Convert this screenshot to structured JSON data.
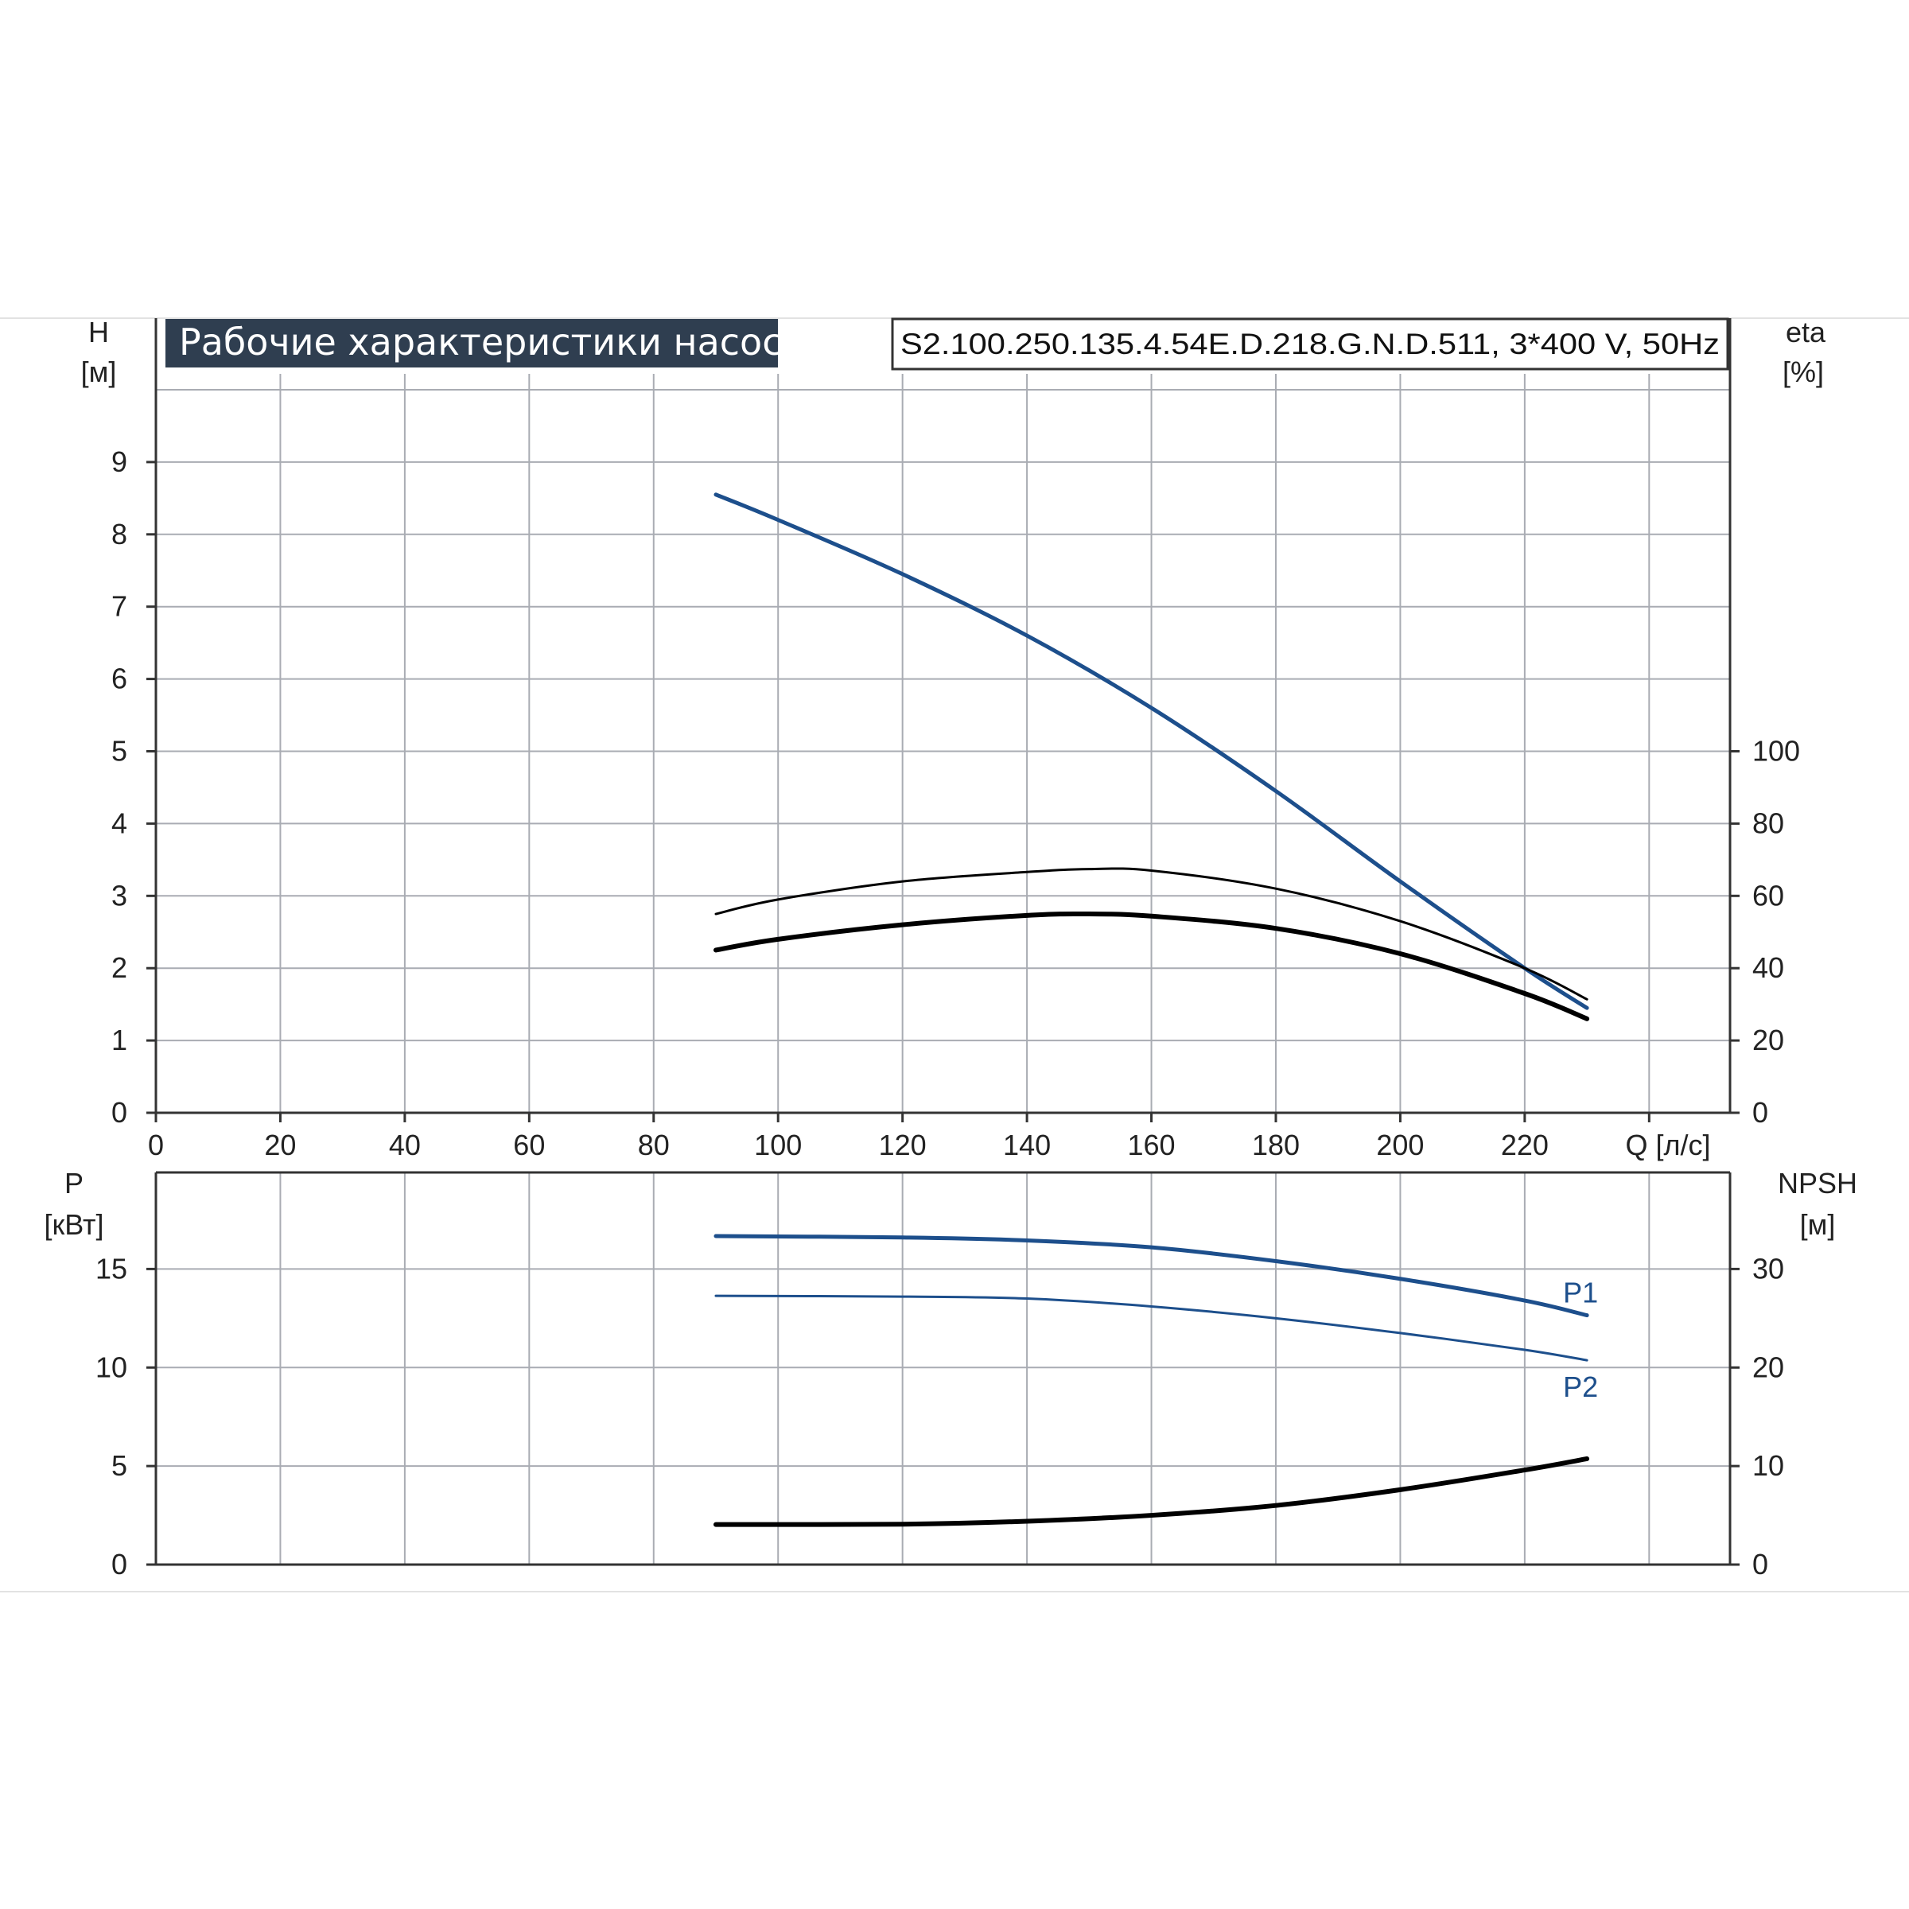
{
  "title": "Рабочие характеристики насоса",
  "model": "S2.100.250.135.4.54E.D.218.G.N.D.511, 3*400 V, 50Hz",
  "colors": {
    "blue": "#1d4f8c",
    "black": "#000000",
    "title_bg": "#2f3e50"
  },
  "chart_data": [
    {
      "type": "line",
      "name": "head-efficiency",
      "xlabel": "Q [л/с]",
      "ylabel": "H",
      "ylabel_unit": "[м]",
      "y2label": "eta",
      "y2label_unit": "[%]",
      "xlim": [
        0,
        253
      ],
      "ylim": [
        0,
        10
      ],
      "y2lim": [
        0,
        200
      ],
      "xticks": [
        "0",
        "20",
        "40",
        "60",
        "80",
        "100",
        "120",
        "140",
        "160",
        "180",
        "200",
        "220"
      ],
      "yticks": [
        "0",
        "1",
        "2",
        "3",
        "4",
        "5",
        "6",
        "7",
        "8",
        "9"
      ],
      "y2ticks": [
        "0",
        "20",
        "40",
        "60",
        "80",
        "100"
      ],
      "grid": true,
      "series": [
        {
          "name": "H",
          "axis": "left",
          "color": "#1d4f8c",
          "width": 5,
          "x": [
            90,
            100,
            120,
            140,
            160,
            180,
            200,
            220,
            230
          ],
          "y": [
            8.55,
            8.2,
            7.45,
            6.6,
            5.6,
            4.45,
            3.2,
            2.0,
            1.45
          ]
        },
        {
          "name": "eta",
          "axis": "right",
          "color": "#000000",
          "width": 3,
          "x": [
            90,
            100,
            120,
            140,
            150,
            160,
            180,
            200,
            220,
            230
          ],
          "y": [
            55,
            59,
            64,
            66.6,
            67.4,
            67,
            62,
            53,
            40,
            31.4
          ]
        },
        {
          "name": "eta-total",
          "axis": "right",
          "color": "#000000",
          "width": 6,
          "x": [
            90,
            100,
            120,
            140,
            150,
            160,
            180,
            200,
            220,
            230
          ],
          "y": [
            45,
            48,
            52,
            54.6,
            55,
            54.4,
            51,
            44,
            33,
            26
          ]
        }
      ]
    },
    {
      "type": "line",
      "name": "power-npsh",
      "ylabel": "P",
      "ylabel_unit": "[кВт]",
      "y2label": "NPSH",
      "y2label_unit": "[м]",
      "xlim": [
        0,
        253
      ],
      "ylim": [
        0,
        19.9
      ],
      "y2lim": [
        0,
        39.8
      ],
      "yticks": [
        "0",
        "5",
        "10",
        "15"
      ],
      "y2ticks": [
        "0",
        "10",
        "20",
        "30"
      ],
      "grid": true,
      "series": [
        {
          "name": "P1",
          "label": "P1",
          "axis": "left",
          "color": "#1d4f8c",
          "width": 5,
          "x": [
            90,
            120,
            140,
            160,
            180,
            200,
            220,
            230
          ],
          "y": [
            16.67,
            16.6,
            16.45,
            16.1,
            15.4,
            14.5,
            13.4,
            12.65
          ]
        },
        {
          "name": "P2",
          "label": "P2",
          "axis": "left",
          "color": "#1d4f8c",
          "width": 3,
          "x": [
            90,
            120,
            140,
            160,
            180,
            200,
            220,
            230
          ],
          "y": [
            13.64,
            13.6,
            13.5,
            13.1,
            12.5,
            11.75,
            10.9,
            10.37
          ]
        },
        {
          "name": "NPSH",
          "axis": "right",
          "color": "#000000",
          "width": 6,
          "x": [
            90,
            120,
            140,
            160,
            180,
            200,
            220,
            230
          ],
          "y": [
            4.07,
            4.1,
            4.4,
            5.0,
            6.0,
            7.6,
            9.6,
            10.74
          ]
        }
      ]
    }
  ]
}
